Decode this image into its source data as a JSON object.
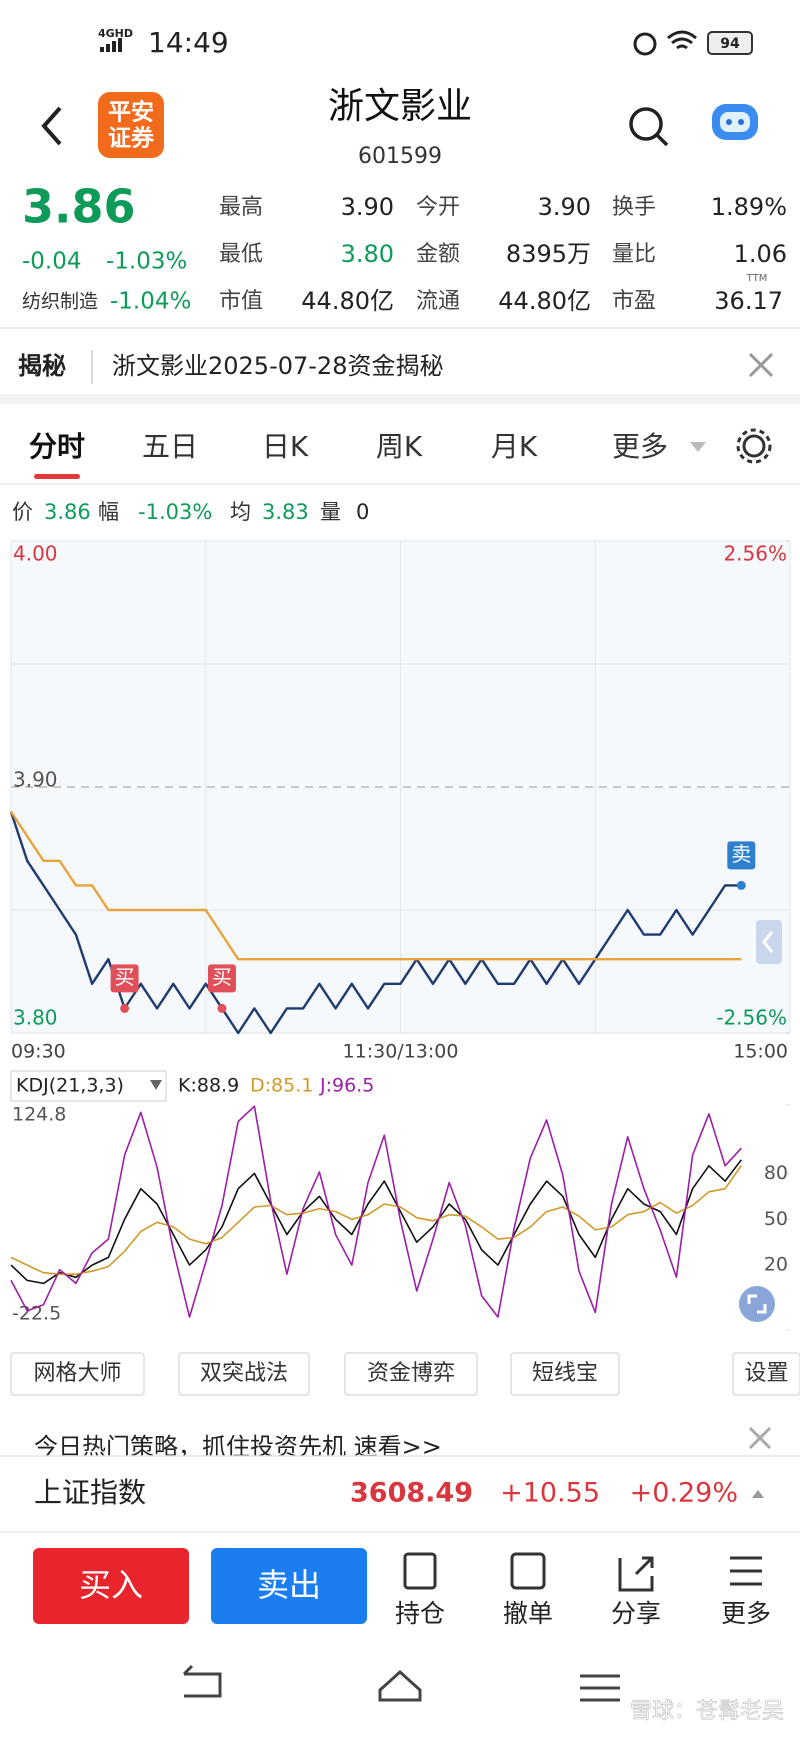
{
  "status_bar": {
    "network": "4GHD",
    "time": "14:49",
    "battery": "94"
  },
  "header": {
    "logo": [
      "平安",
      "证券"
    ],
    "title": "浙文影业",
    "code": "601599"
  },
  "quote": {
    "price": "3.86",
    "change": "-0.04",
    "change_pct": "-1.03%",
    "sector": "纺织制造",
    "sector_change": "-1.04%",
    "stats": [
      [
        {
          "label": "最高",
          "value": "3.90"
        },
        {
          "label": "今开",
          "value": "3.90"
        },
        {
          "label": "换手",
          "value": "1.89%"
        }
      ],
      [
        {
          "label": "最低",
          "value": "3.80",
          "color": "#0e9b5a"
        },
        {
          "label": "金额",
          "value": "8395万"
        },
        {
          "label": "量比",
          "value": "1.06"
        }
      ],
      [
        {
          "label": "市值",
          "value": "44.80亿"
        },
        {
          "label": "流通",
          "value": "44.80亿"
        },
        {
          "label": "市盈",
          "value": "36.17",
          "sup": "TTM"
        }
      ]
    ]
  },
  "notice": {
    "tag": "揭秘",
    "text": "浙文影业2025-07-28资金揭秘"
  },
  "tabs": [
    "分时",
    "五日",
    "日K",
    "周K",
    "月K",
    "更多"
  ],
  "info": {
    "price": "3.86",
    "amplitude_label": "幅",
    "amplitude": "-1.03%",
    "avg": "3.83",
    "volume_label": "量",
    "volume": "0"
  },
  "chart_data": [
    {
      "type": "line",
      "x": [
        0,
        5,
        10,
        15,
        20,
        25,
        30,
        35,
        40,
        45,
        50,
        55,
        60,
        65,
        70,
        75,
        80,
        85,
        90,
        95,
        100,
        105,
        110,
        115,
        120,
        125,
        130,
        135,
        140,
        145,
        150,
        155,
        160,
        165,
        170,
        175,
        180,
        185,
        190,
        195,
        200,
        205,
        210,
        215,
        220,
        225
      ],
      "series": [
        {
          "name": "价",
          "color": "#1f3a6e",
          "values": [
            3.89,
            3.87,
            3.86,
            3.85,
            3.84,
            3.82,
            3.83,
            3.81,
            3.82,
            3.81,
            3.82,
            3.81,
            3.82,
            3.81,
            3.8,
            3.81,
            3.8,
            3.81,
            3.81,
            3.82,
            3.81,
            3.82,
            3.81,
            3.82,
            3.82,
            3.83,
            3.82,
            3.83,
            3.82,
            3.83,
            3.82,
            3.82,
            3.83,
            3.82,
            3.83,
            3.82,
            3.83,
            3.84,
            3.85,
            3.84,
            3.84,
            3.85,
            3.84,
            3.85,
            3.86,
            3.86
          ]
        },
        {
          "name": "均",
          "color": "#e8a33a",
          "values": [
            3.89,
            3.88,
            3.87,
            3.87,
            3.86,
            3.86,
            3.85,
            3.85,
            3.85,
            3.85,
            3.85,
            3.85,
            3.85,
            3.84,
            3.83,
            3.83,
            3.83,
            3.83,
            3.83,
            3.83,
            3.83,
            3.83,
            3.83,
            3.83,
            3.83,
            3.83,
            3.83,
            3.83,
            3.83,
            3.83,
            3.83,
            3.83,
            3.83,
            3.83,
            3.83,
            3.83,
            3.83,
            3.83,
            3.83,
            3.83,
            3.83,
            3.83,
            3.83,
            3.83,
            3.83,
            3.83
          ]
        }
      ],
      "xlim": [
        0,
        240
      ],
      "xticks": [
        {
          "value": 0,
          "label": "09:30"
        },
        {
          "value": 120,
          "label": "11:30/13:00"
        },
        {
          "value": 240,
          "label": "15:00"
        }
      ],
      "ylim": [
        3.8,
        4.0
      ],
      "yticks": [
        {
          "value": 3.8,
          "label": "3.80"
        },
        {
          "value": 3.9,
          "label": "3.90"
        },
        {
          "value": 4.0,
          "label": "4.00"
        }
      ],
      "y2lim": [
        -2.56,
        2.56
      ],
      "y2ticks": [
        {
          "value": -2.56,
          "label": "-2.56%"
        },
        {
          "value": 2.56,
          "label": "2.56%"
        }
      ],
      "markers": [
        {
          "label": "买",
          "x": 35,
          "color": "#e0505a"
        },
        {
          "label": "买",
          "x": 65,
          "color": "#e0505a"
        },
        {
          "label": "卖",
          "x": 225,
          "color": "#2f7fcf"
        }
      ]
    },
    {
      "type": "line",
      "indicator": "KDJ(21,3,3)",
      "x": [
        0,
        5,
        10,
        15,
        20,
        25,
        30,
        35,
        40,
        45,
        50,
        55,
        60,
        65,
        70,
        75,
        80,
        85,
        90,
        95,
        100,
        105,
        110,
        115,
        120,
        125,
        130,
        135,
        140,
        145,
        150,
        155,
        160,
        165,
        170,
        175,
        180,
        185,
        190,
        195,
        200,
        205,
        210,
        215,
        220,
        225
      ],
      "series": [
        {
          "name": "K:88.9",
          "color": "#111111",
          "values": [
            20,
            10,
            8,
            15,
            12,
            20,
            25,
            50,
            70,
            60,
            40,
            20,
            30,
            45,
            70,
            80,
            60,
            40,
            55,
            65,
            50,
            40,
            60,
            75,
            55,
            35,
            45,
            60,
            50,
            30,
            20,
            40,
            60,
            75,
            65,
            40,
            25,
            50,
            70,
            60,
            55,
            40,
            70,
            85,
            75,
            88.9
          ]
        },
        {
          "name": "D:85.1",
          "color": "#d19a2a",
          "values": [
            25,
            20,
            15,
            14,
            14,
            16,
            19,
            29,
            42,
            48,
            45,
            37,
            34,
            38,
            48,
            58,
            59,
            53,
            54,
            57,
            55,
            50,
            53,
            60,
            58,
            51,
            49,
            53,
            52,
            45,
            37,
            38,
            45,
            55,
            58,
            52,
            43,
            45,
            53,
            55,
            61,
            54,
            59,
            68,
            70,
            85.1
          ]
        },
        {
          "name": "J:96.5",
          "color": "#9c1fa6",
          "values": [
            10,
            -10,
            -6,
            17,
            8,
            28,
            37,
            92,
            120,
            84,
            30,
            -14,
            22,
            59,
            114,
            124,
            62,
            14,
            57,
            81,
            40,
            20,
            74,
            105,
            49,
            3,
            37,
            74,
            46,
            0,
            -14,
            44,
            90,
            115,
            79,
            16,
            -11,
            60,
            104,
            70,
            43,
            12,
            92,
            119,
            85,
            96.5
          ]
        }
      ],
      "xlim": [
        0,
        240
      ],
      "ylim": [
        -22.5,
        124.8
      ],
      "yticks": [
        -22.5,
        20,
        50,
        80,
        124.8
      ]
    }
  ],
  "tools": [
    "网格大师",
    "双突战法",
    "资金博弈",
    "短线宝",
    "设置"
  ],
  "promo": "今日热门策略，抓住投资先机 速看>>",
  "index": {
    "name": "上证指数",
    "value": "3608.49",
    "change": "+10.55",
    "change_pct": "+0.29%"
  },
  "trade_buttons": [
    "买入",
    "卖出"
  ],
  "actions": [
    "持仓",
    "撤单",
    "分享",
    "更多"
  ],
  "watermark": "雪球：苍髯老吴"
}
